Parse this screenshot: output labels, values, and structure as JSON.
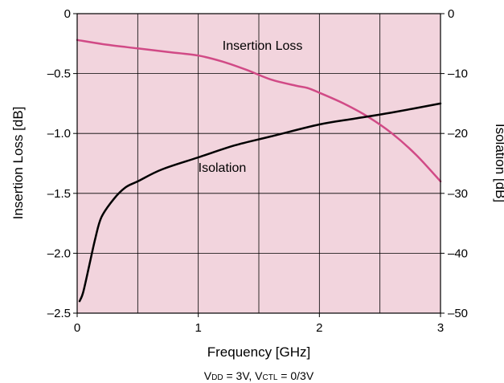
{
  "chart_data": {
    "type": "line",
    "xlabel": "Frequency [GHz]",
    "ylabel_left": "Insertion Loss [dB]",
    "ylabel_right": "Isolation [dB]",
    "xlim": [
      0,
      3
    ],
    "ylim_left": [
      -2.5,
      0
    ],
    "ylim_right": [
      -50,
      0
    ],
    "x_ticks": [
      "0",
      "1",
      "2",
      "3"
    ],
    "y_left_ticks": [
      "0",
      "–0.5",
      "–1.0",
      "–1.5",
      "–2.0",
      "–2.5"
    ],
    "y_right_ticks": [
      "0",
      "–10",
      "–20",
      "–30",
      "–40",
      "–50"
    ],
    "grid": true,
    "background_color": "#f2d4dd",
    "series": [
      {
        "name": "Insertion Loss",
        "axis": "left",
        "color": "#d14a86",
        "x": [
          0,
          0.25,
          0.5,
          0.75,
          1.0,
          1.2,
          1.4,
          1.6,
          1.8,
          1.9,
          2.0,
          2.2,
          2.4,
          2.6,
          2.8,
          3.0
        ],
        "y": [
          -0.22,
          -0.26,
          -0.29,
          -0.32,
          -0.35,
          -0.4,
          -0.47,
          -0.55,
          -0.6,
          -0.62,
          -0.66,
          -0.75,
          -0.86,
          -1.0,
          -1.18,
          -1.4
        ]
      },
      {
        "name": "Isolation",
        "axis": "right",
        "color": "#000000",
        "x": [
          0.02,
          0.05,
          0.1,
          0.15,
          0.2,
          0.3,
          0.4,
          0.5,
          0.7,
          1.0,
          1.3,
          1.6,
          2.0,
          2.3,
          2.6,
          3.0
        ],
        "y": [
          -48,
          -46.5,
          -42,
          -37.5,
          -34,
          -31,
          -29,
          -28,
          -26,
          -24,
          -22,
          -20.5,
          -18.5,
          -17.5,
          -16.5,
          -15
        ]
      }
    ],
    "annotations": [
      {
        "text": "Insertion Loss",
        "x": 1.2,
        "y": -0.3
      },
      {
        "text": "Isolation",
        "x": 1.0,
        "y": -1.32
      }
    ],
    "conditions": {
      "v1": "V",
      "v1_sub": "DD",
      "v1_rest": " = 3V, ",
      "v2": "V",
      "v2_sub": "CTL",
      "v2_rest": " = 0/3V"
    }
  }
}
